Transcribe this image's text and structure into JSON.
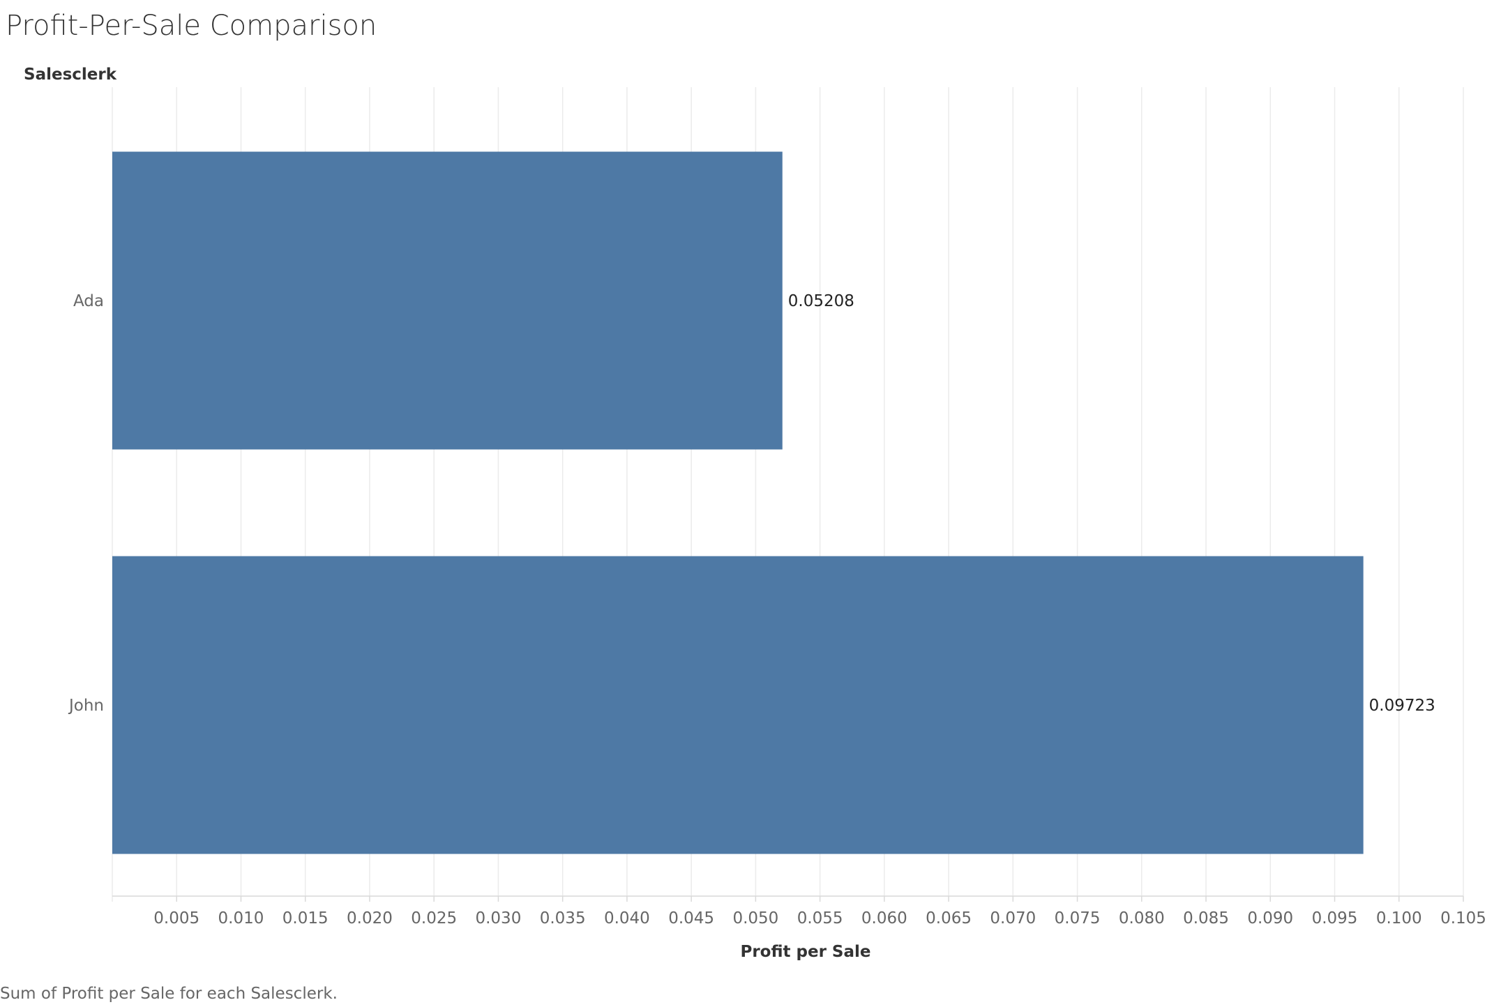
{
  "chart_data": {
    "type": "bar",
    "orientation": "horizontal",
    "title": "Profit-Per-Sale Comparison",
    "row_header": "Salesclerk",
    "xlabel": "Profit per Sale",
    "categories": [
      "Ada",
      "John"
    ],
    "values": [
      0.05208,
      0.09723
    ],
    "value_labels": [
      "0.05208",
      "0.09723"
    ],
    "xlim": [
      0,
      0.105
    ],
    "xticks": [
      "0.005",
      "0.010",
      "0.015",
      "0.020",
      "0.025",
      "0.030",
      "0.035",
      "0.040",
      "0.045",
      "0.050",
      "0.055",
      "0.060",
      "0.065",
      "0.070",
      "0.075",
      "0.080",
      "0.085",
      "0.090",
      "0.095",
      "0.100",
      "0.105"
    ],
    "grid": true,
    "bar_color": "#4E79A5",
    "footnote": "Sum of Profit per Sale for each Salesclerk."
  }
}
